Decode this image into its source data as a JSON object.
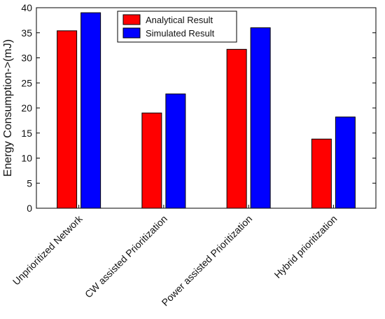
{
  "chart_data": {
    "type": "bar",
    "title": "",
    "xlabel": "",
    "ylabel": "Energy Consumption->(mJ)",
    "categories": [
      "Unprioritized Network",
      "CW assisted Prioritization",
      "Power assisted Prioritization",
      "Hybrid prioritization"
    ],
    "series": [
      {
        "name": "Analytical Result",
        "color": "#ff0000",
        "values": [
          35.4,
          19.0,
          31.7,
          13.8
        ]
      },
      {
        "name": "Simulated Result",
        "color": "#0000ff",
        "values": [
          39.0,
          22.8,
          36.0,
          18.2
        ]
      }
    ],
    "ylim": [
      0,
      40
    ],
    "yticks": [
      0,
      5,
      10,
      15,
      20,
      25,
      30,
      35,
      40
    ],
    "grid": false,
    "legend_position": "top-center"
  }
}
